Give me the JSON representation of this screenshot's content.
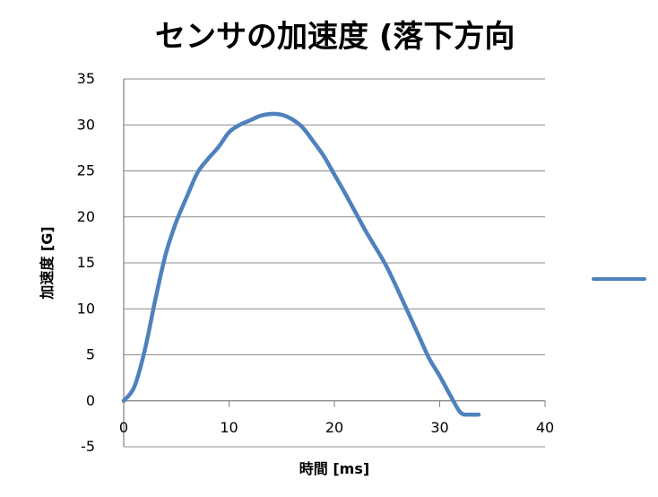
{
  "chart_data": {
    "type": "line",
    "title": "センサの加速度 (落下方向",
    "xlabel": "時間 [ms]",
    "ylabel": "加速度 [G]",
    "xlim": [
      0,
      40
    ],
    "ylim": [
      -5,
      35
    ],
    "x_ticks": [
      "0",
      "10",
      "20",
      "30",
      "40"
    ],
    "y_ticks": [
      "35",
      "30",
      "25",
      "20",
      "15",
      "10",
      "5",
      "0",
      "-5"
    ],
    "grid": true,
    "legend": "right (label cut off)",
    "series": [
      {
        "color": "#4f81bd",
        "x": [
          0,
          1,
          2,
          3,
          4,
          5,
          6,
          7,
          8,
          9,
          10,
          11,
          12,
          13,
          14,
          15,
          16,
          17,
          18,
          19,
          20,
          21,
          22,
          23,
          24,
          25,
          26,
          27,
          28,
          29,
          30,
          31,
          32,
          33,
          33.7
        ],
        "y": [
          0,
          1.5,
          5.5,
          11,
          16,
          19.5,
          22.2,
          24.8,
          26.3,
          27.6,
          29.2,
          30,
          30.5,
          31,
          31.2,
          31.1,
          30.6,
          29.7,
          28.2,
          26.6,
          24.6,
          22.6,
          20.5,
          18.4,
          16.5,
          14.5,
          12.1,
          9.6,
          7.1,
          4.6,
          2.7,
          0.6,
          -1.3,
          -1.5,
          -1.5
        ]
      }
    ]
  }
}
